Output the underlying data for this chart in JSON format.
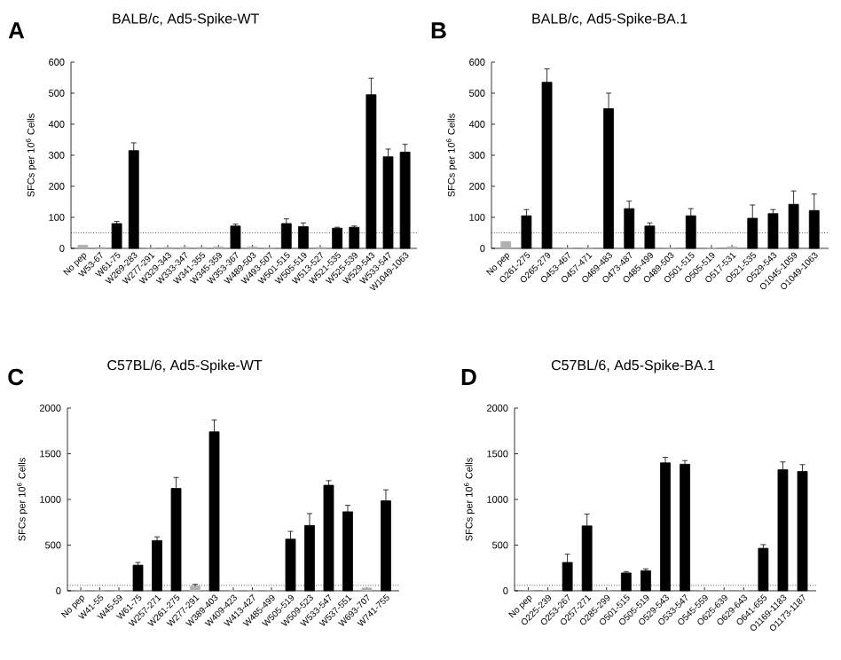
{
  "chart_data": [
    {
      "type": "bar",
      "title": "BALB/c, Ad5-Spike-WT",
      "annotations": [
        "A"
      ],
      "ylabel": "SFCs per 10$^{6}$ Cells",
      "categories": [
        "No pep",
        "W53-67",
        "W61-75",
        "W269-283",
        "W277-291",
        "W329-343",
        "W333-347",
        "W341-355",
        "W345-359",
        "W353-367",
        "W489-503",
        "W493-507",
        "W501-515",
        "W505-519",
        "W513-527",
        "W521-535",
        "W525-539",
        "W529-543",
        "W533-547",
        "W1049-1063"
      ],
      "values": [
        10,
        3,
        80,
        315,
        0,
        3,
        3,
        3,
        5,
        72,
        5,
        2,
        80,
        70,
        3,
        65,
        68,
        495,
        295,
        310
      ],
      "colors": [
        "#b0b0b0",
        "#b0b0b0",
        "#000000",
        "#000000",
        "#b0b0b0",
        "#b0b0b0",
        "#b0b0b0",
        "#b0b0b0",
        "#b0b0b0",
        "#000000",
        "#b0b0b0",
        "#b0b0b0",
        "#000000",
        "#000000",
        "#b0b0b0",
        "#000000",
        "#000000",
        "#000000",
        "#000000",
        "#000000"
      ],
      "errors": [
        null,
        null,
        7,
        25,
        null,
        null,
        null,
        null,
        null,
        6,
        null,
        null,
        15,
        12,
        null,
        3,
        4,
        53,
        25,
        25
      ],
      "ylim": [
        0,
        600
      ],
      "yticks": [
        0,
        100,
        200,
        300,
        400,
        500,
        600
      ],
      "ref_lines": [
        {
          "axis": "y",
          "value": 50,
          "line_style": "dotted"
        }
      ]
    },
    {
      "type": "bar",
      "title": "BALB/c, Ad5-Spike-BA.1",
      "annotations": [
        "B"
      ],
      "ylabel": "SFCs per 10$^{6}$ Cells",
      "categories": [
        "No pep",
        "O261-275",
        "O265-279",
        "O453-467",
        "O457-471",
        "O469-483",
        "O473-487",
        "O485-499",
        "O489-503",
        "O501-515",
        "O505-519",
        "O517-531",
        "O521-535",
        "O529-543",
        "O1045-1059",
        "O1049-1063"
      ],
      "values": [
        22,
        105,
        535,
        0,
        0,
        450,
        128,
        72,
        2,
        105,
        0,
        5,
        97,
        112,
        142,
        122
      ],
      "colors": [
        "#b0b0b0",
        "#000000",
        "#000000",
        "#b0b0b0",
        "#b0b0b0",
        "#000000",
        "#000000",
        "#000000",
        "#b0b0b0",
        "#000000",
        "#b0b0b0",
        "#b0b0b0",
        "#000000",
        "#000000",
        "#000000",
        "#000000"
      ],
      "errors": [
        null,
        20,
        43,
        null,
        null,
        50,
        24,
        10,
        null,
        23,
        null,
        null,
        43,
        13,
        43,
        53
      ],
      "ylim": [
        0,
        600
      ],
      "yticks": [
        0,
        100,
        200,
        300,
        400,
        500,
        600
      ],
      "ref_lines": [
        {
          "axis": "y",
          "value": 50,
          "line_style": "dotted"
        }
      ]
    },
    {
      "type": "bar",
      "title": "C57BL/6, Ad5-Spike-WT",
      "annotations": [
        "C"
      ],
      "ylabel": "SFCs per 10$^{6}$ Cells",
      "categories": [
        "No pep",
        "W41-55",
        "W45-59",
        "W61-75",
        "W257-271",
        "W261-275",
        "W277-291",
        "W389-403",
        "W409-423",
        "W413-427",
        "W485-499",
        "W505-519",
        "W509-523",
        "W533-547",
        "W537-551",
        "W693-707",
        "W741-755"
      ],
      "values": [
        0,
        0,
        0,
        280,
        550,
        1120,
        50,
        1740,
        0,
        0,
        0,
        565,
        715,
        1155,
        865,
        30,
        985
      ],
      "colors": [
        "#b0b0b0",
        "#b0b0b0",
        "#b0b0b0",
        "#000000",
        "#000000",
        "#000000",
        "#b0b0b0",
        "#000000",
        "#b0b0b0",
        "#b0b0b0",
        "#b0b0b0",
        "#000000",
        "#000000",
        "#000000",
        "#000000",
        "#b0b0b0",
        "#000000"
      ],
      "errors": [
        null,
        null,
        null,
        30,
        40,
        120,
        20,
        130,
        null,
        null,
        null,
        85,
        130,
        50,
        70,
        null,
        120
      ],
      "ylim": [
        0,
        2000
      ],
      "yticks": [
        0,
        500,
        1000,
        1500,
        2000
      ],
      "ref_lines": [
        {
          "axis": "y",
          "value": 60,
          "line_style": "dotted"
        }
      ]
    },
    {
      "type": "bar",
      "title": "C57BL/6, Ad5-Spike-BA.1",
      "annotations": [
        "D"
      ],
      "ylabel": "SFCs per 10$^{6}$ Cells",
      "categories": [
        "No pep",
        "O225-239",
        "O253-267",
        "O257-271",
        "O285-299",
        "O501-515",
        "O505-519",
        "O529-543",
        "O533-547",
        "O545-559",
        "O625-639",
        "O629-643",
        "O641-655",
        "O1169-1183",
        "O1173-1187"
      ],
      "values": [
        0,
        0,
        310,
        710,
        0,
        195,
        220,
        1400,
        1385,
        0,
        0,
        0,
        465,
        1325,
        1305
      ],
      "colors": [
        "#b0b0b0",
        "#b0b0b0",
        "#000000",
        "#000000",
        "#b0b0b0",
        "#000000",
        "#000000",
        "#000000",
        "#000000",
        "#b0b0b0",
        "#b0b0b0",
        "#b0b0b0",
        "#000000",
        "#000000",
        "#000000"
      ],
      "errors": [
        null,
        null,
        90,
        130,
        null,
        15,
        20,
        60,
        40,
        null,
        null,
        null,
        40,
        85,
        75
      ],
      "ylim": [
        0,
        2000
      ],
      "yticks": [
        0,
        500,
        1000,
        1500,
        2000
      ],
      "ref_lines": [
        {
          "axis": "y",
          "value": 60,
          "line_style": "dotted"
        }
      ]
    }
  ]
}
